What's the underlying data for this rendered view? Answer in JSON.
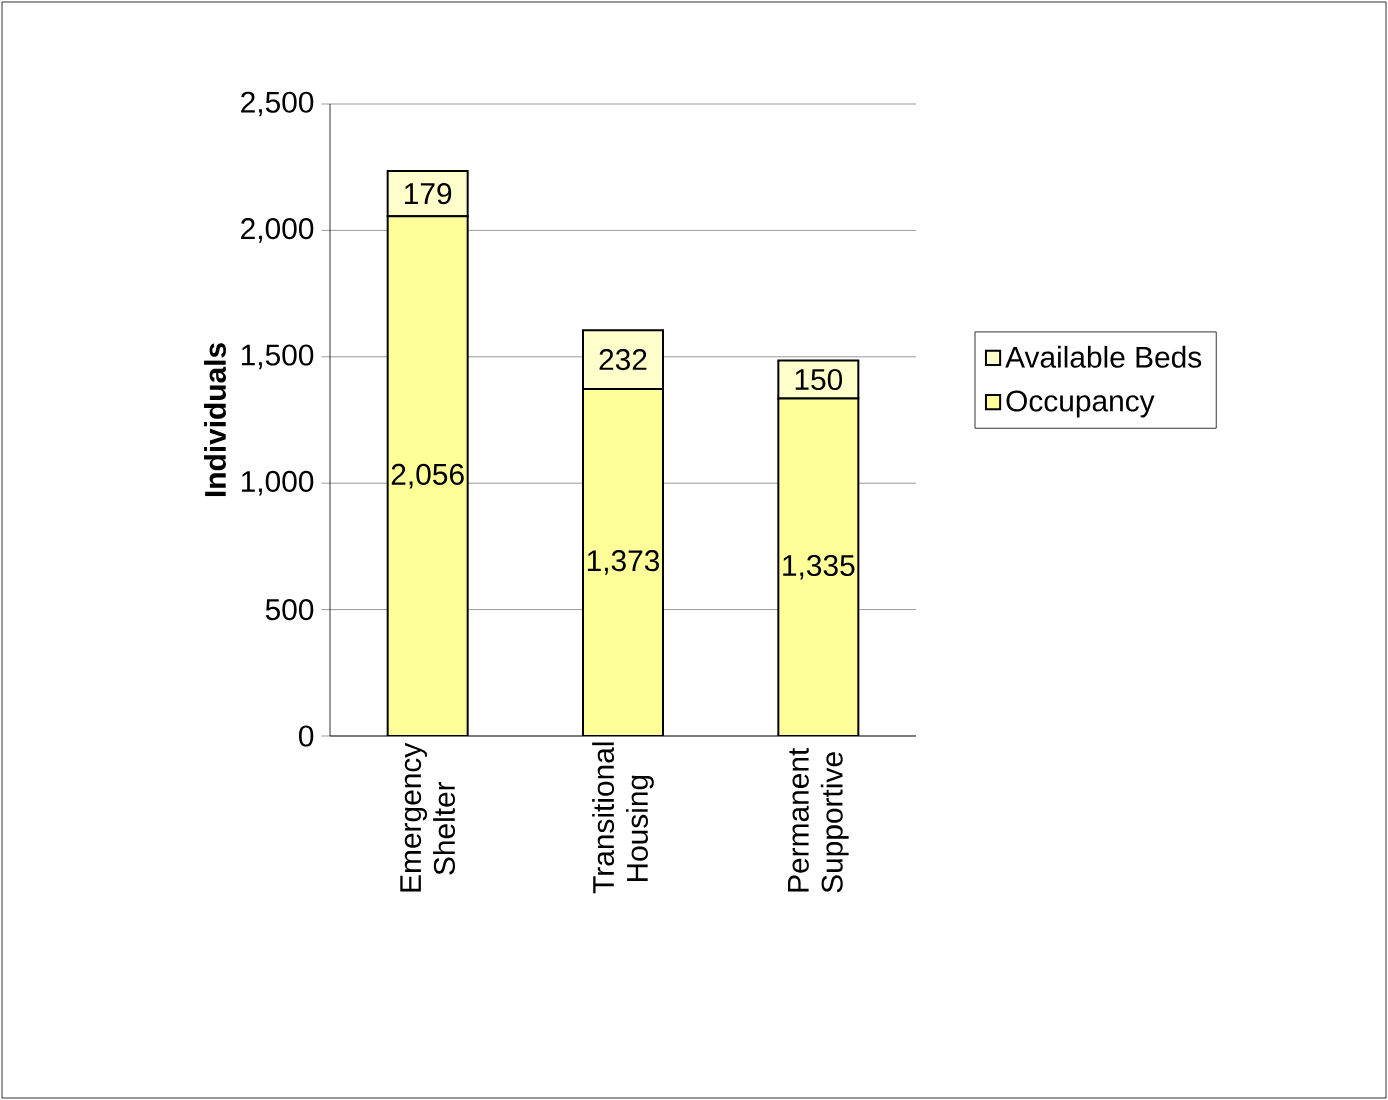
{
  "chart_data": {
    "type": "bar",
    "stacked": true,
    "ylabel": "**Individuals**",
    "categories": [
      "Emergency Shelter",
      "Transitional Housing",
      "Permanent Supportive"
    ],
    "series": [
      {
        "name": "Occupancy",
        "color": "#ffff99",
        "values": [
          2056,
          1373,
          1335
        ],
        "value_labels": [
          "2,056",
          "1,373",
          "1,335"
        ]
      },
      {
        "name": "Available Beds",
        "color": "#ffffcc",
        "values": [
          179,
          232,
          150
        ],
        "value_labels": [
          "179",
          "232",
          "150"
        ]
      }
    ],
    "ylim": [
      0,
      2500
    ],
    "yticks": [
      0,
      500,
      {
        "value": 1000,
        "label": "1,000"
      },
      {
        "value": 1500,
        "label": "1,500"
      },
      {
        "value": 2000,
        "label": "2,000"
      },
      {
        "value": 2500,
        "label": "2,500"
      }
    ],
    "grid": "y",
    "legend": "right"
  }
}
